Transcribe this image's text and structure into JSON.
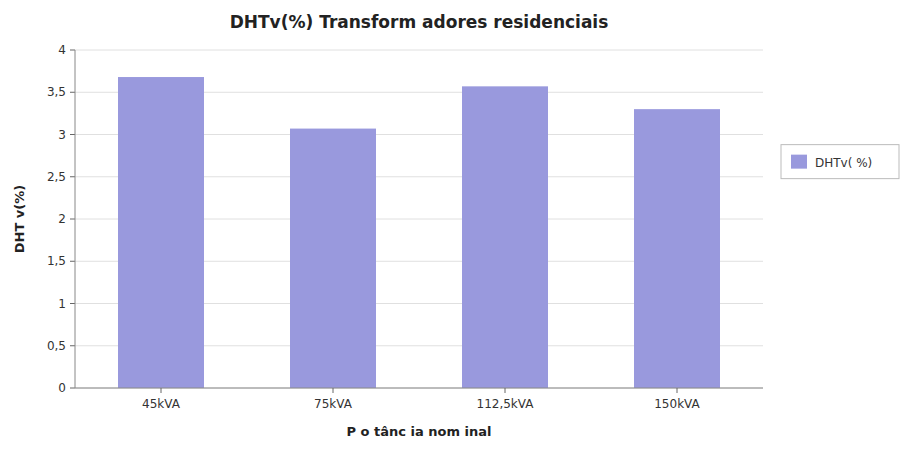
{
  "chart_data": {
    "type": "bar",
    "title": "DHTv(%) Transform adores residenciais",
    "categories": [
      "45kVA",
      "75kVA",
      "112,5kVA",
      "150kVA"
    ],
    "series": [
      {
        "name": "DHTv( %)",
        "color": "#9999dd",
        "values": [
          3.68,
          3.07,
          3.57,
          3.3
        ]
      }
    ],
    "xlabel": "P o tânc ia nom inal",
    "ylabel": "DHT v(%)",
    "ylim": [
      0,
      4.0
    ],
    "yticks": [
      0,
      {
        "value": 0.5,
        "label": "0,5"
      },
      1,
      {
        "value": 1.5,
        "label": "1,5"
      },
      2,
      {
        "value": 2.5,
        "label": "2,5"
      },
      3,
      {
        "value": 3.5,
        "label": "3,5"
      },
      4
    ],
    "grid": true,
    "legend": "right"
  }
}
